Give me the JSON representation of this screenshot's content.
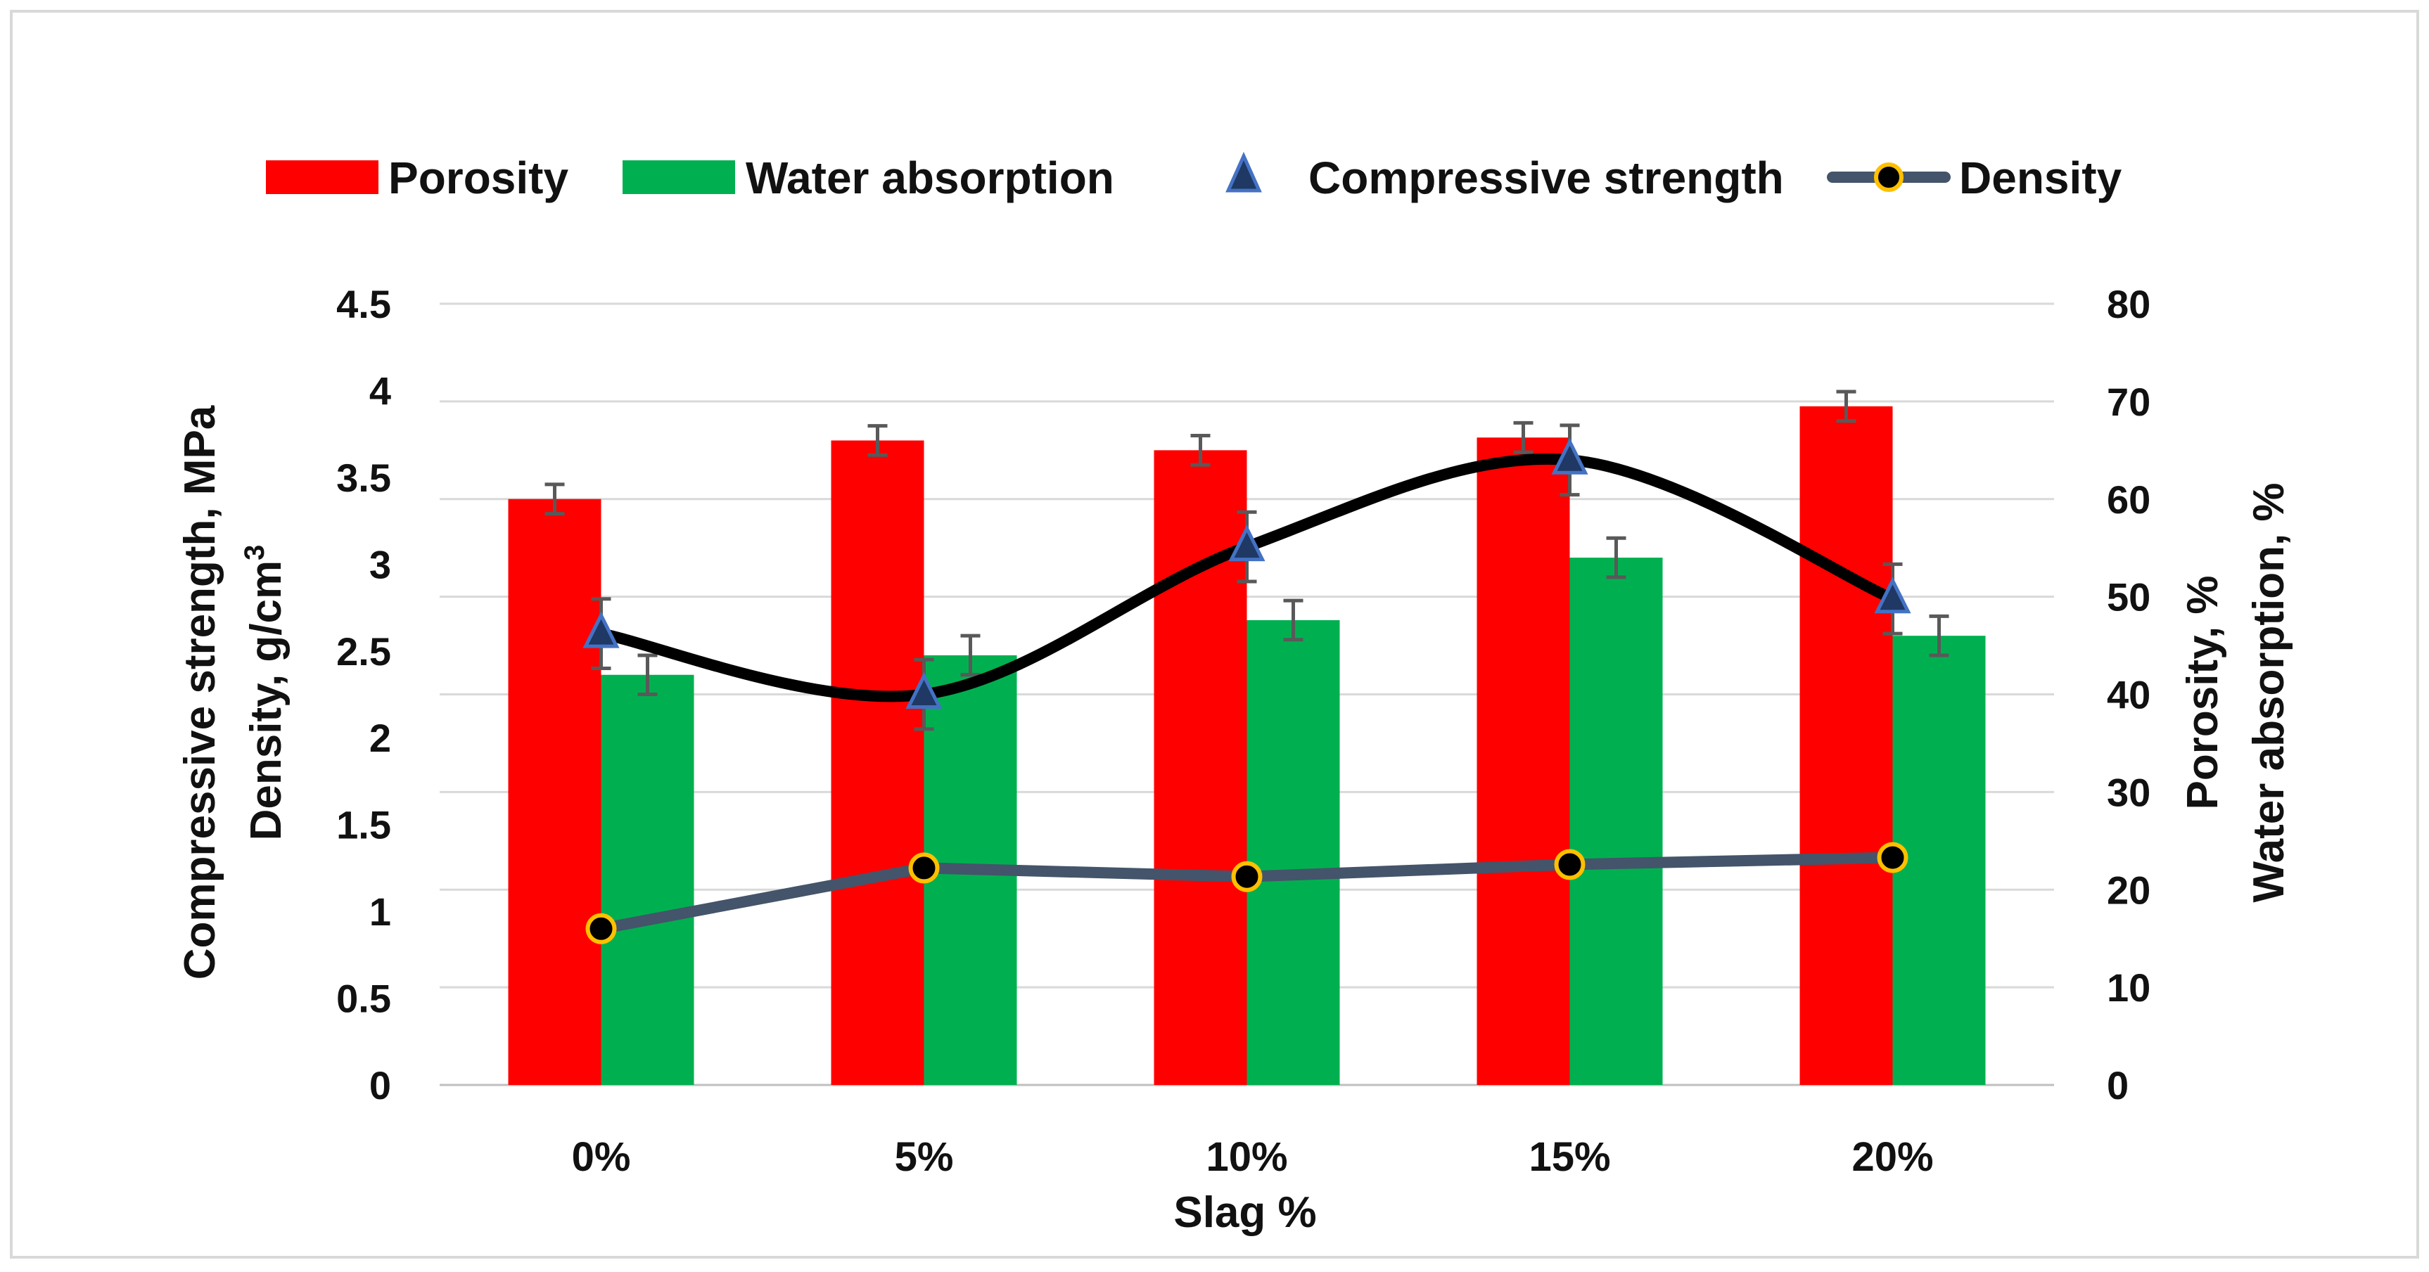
{
  "chart_data": {
    "type": "bar",
    "categories": [
      "0%",
      "5%",
      "10%",
      "15%",
      "20%"
    ],
    "xlabel": "Slag %",
    "ylabel_left_lines": [
      "Compressive strength, MPa",
      "Density, g/cm",
      "3"
    ],
    "ylabel_right_lines": [
      "Porosity, %",
      "Water absorption, %"
    ],
    "left_axis": {
      "min": 0,
      "max": 4.5,
      "ticks": [
        "0",
        "0.5",
        "1",
        "1.5",
        "2",
        "2.5",
        "3",
        "3.5",
        "4",
        "4.5"
      ]
    },
    "right_axis": {
      "min": 0,
      "max": 80,
      "ticks": [
        "0",
        "10",
        "20",
        "30",
        "40",
        "50",
        "60",
        "70",
        "80"
      ]
    },
    "grid": true,
    "legend_position": "top",
    "series": [
      {
        "name": "Porosity",
        "kind": "bar",
        "axis": "right",
        "color": "#ff0000",
        "values": [
          60,
          66,
          65,
          66.3,
          69.5
        ],
        "error": [
          1.5,
          1.5,
          1.5,
          1.5,
          1.5
        ]
      },
      {
        "name": "Water absorption",
        "kind": "bar",
        "axis": "right",
        "color": "#00b050",
        "values": [
          42,
          44,
          47.6,
          54,
          46
        ],
        "error": [
          2,
          2,
          2,
          2,
          2
        ]
      },
      {
        "name": "Compressive strength",
        "kind": "scatter-smooth",
        "axis": "left",
        "color": "#000000",
        "marker_color": "#1f3864",
        "marker_edge": "#4472c4",
        "values": [
          2.6,
          2.25,
          3.1,
          3.6,
          2.8
        ],
        "error": [
          0.2,
          0.2,
          0.2,
          0.2,
          0.2
        ]
      },
      {
        "name": "Density",
        "kind": "line",
        "axis": "left",
        "color": "#44546a",
        "marker_color": "#000000",
        "marker_edge": "#ffc000",
        "values": [
          0.9,
          1.25,
          1.2,
          1.27,
          1.31
        ]
      }
    ]
  }
}
